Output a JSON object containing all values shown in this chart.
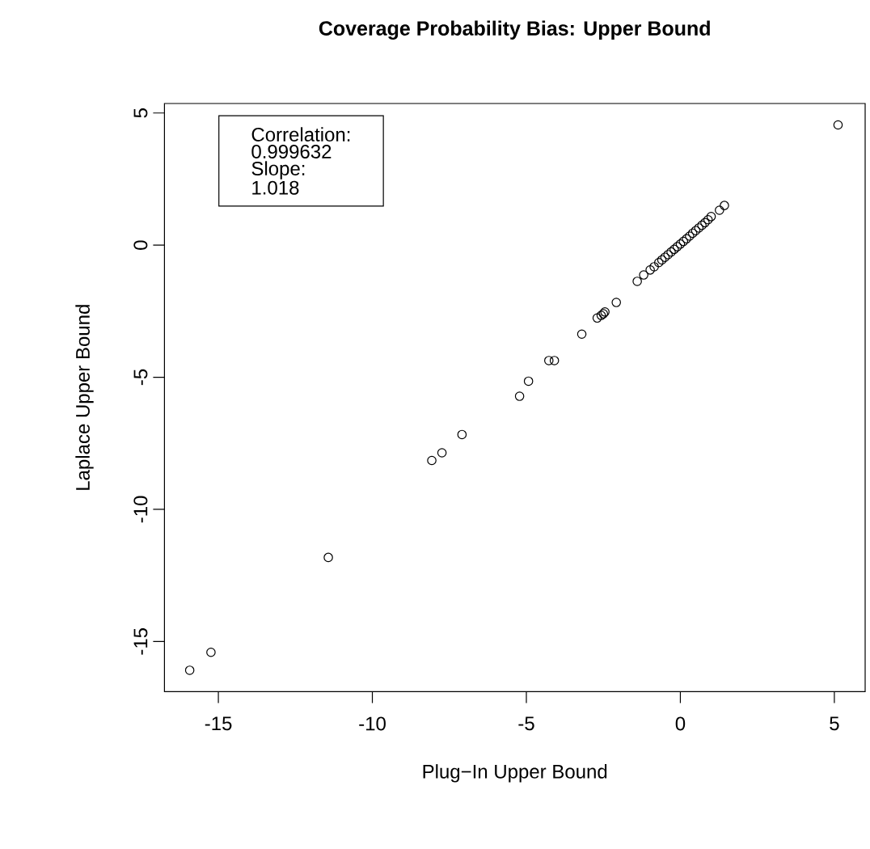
{
  "chart_data": {
    "type": "scatter",
    "title": "Coverage Probability Bias: Upper Bound",
    "xlabel": "Plug−In Upper Bound",
    "ylabel": "Laplace Upper Bound",
    "annotations": [
      "Correlation:",
      "0.999632",
      "Slope:",
      "1.018"
    ],
    "marker": "circle",
    "grid": false,
    "xlim": [
      -16.75,
      6.0
    ],
    "ylim": [
      -16.9,
      5.36
    ],
    "xticks": [
      -15,
      -10,
      -5,
      0,
      5
    ],
    "yticks": [
      -15,
      -10,
      -5,
      0,
      5
    ],
    "series": [
      {
        "color": "#000000",
        "x": [
          -15.93,
          -15.24,
          -11.43,
          -8.07,
          -7.74,
          -7.09,
          -5.22,
          -4.93,
          -4.27,
          -4.09,
          -3.2,
          -2.7,
          -2.57,
          -2.5,
          -2.45,
          -2.08,
          -1.4,
          -1.19,
          -0.98,
          -0.85,
          -0.7,
          -0.6,
          -0.5,
          -0.4,
          -0.3,
          -0.2,
          -0.1,
          0.0,
          0.1,
          0.2,
          0.3,
          0.4,
          0.5,
          0.6,
          0.7,
          0.8,
          0.9,
          1.0,
          1.27,
          1.43,
          5.12
        ],
        "values": [
          -16.09,
          -15.41,
          -11.82,
          -8.15,
          -7.86,
          -7.17,
          -5.72,
          -5.15,
          -4.37,
          -4.37,
          -3.37,
          -2.76,
          -2.66,
          -2.6,
          -2.53,
          -2.17,
          -1.37,
          -1.13,
          -0.94,
          -0.82,
          -0.66,
          -0.56,
          -0.46,
          -0.36,
          -0.26,
          -0.16,
          -0.06,
          0.04,
          0.14,
          0.24,
          0.34,
          0.45,
          0.55,
          0.65,
          0.75,
          0.85,
          0.96,
          1.08,
          1.32,
          1.5,
          4.55
        ]
      }
    ]
  }
}
